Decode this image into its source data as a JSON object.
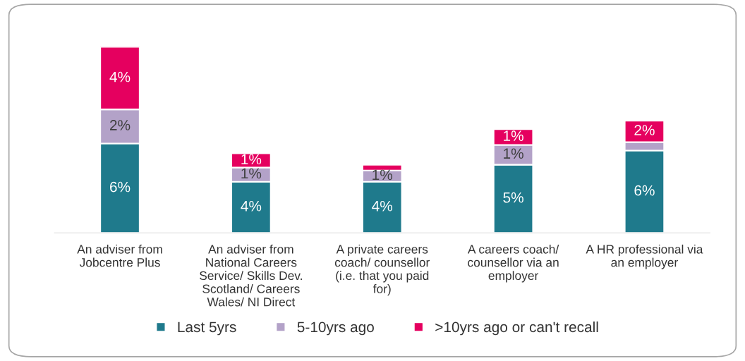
{
  "chart_data": {
    "type": "bar",
    "stacked": true,
    "legend": "bottom",
    "grid": false,
    "categories": [
      "An adviser from Jobcentre Plus",
      "An adviser from National Careers Service/ Skills Dev. Scotland/ Careers Wales/ NI Direct",
      "A private careers coach/ counsellor (i.e. that you paid for)",
      "A careers coach/ counsellor via an employer",
      "A HR professional via an employer"
    ],
    "series": [
      {
        "name": "Last 5yrs",
        "color": "#1f7a8c",
        "values": [
          6.3,
          3.6,
          3.6,
          4.8,
          5.8
        ],
        "value_labels": [
          "6%",
          "4%",
          "4%",
          "5%",
          "6%"
        ]
      },
      {
        "name": "5-10yrs ago",
        "color": "#b3a2c8",
        "values": [
          2.4,
          1.0,
          0.8,
          1.4,
          0.6
        ],
        "value_labels": [
          "2%",
          "1%",
          "1%",
          "1%",
          null
        ]
      },
      {
        "name": ">10yrs ago or can't recall",
        "color": "#e5005f",
        "values": [
          4.4,
          1.0,
          0.4,
          1.1,
          1.5
        ],
        "value_labels": [
          "4%",
          "1%",
          null,
          "1%",
          "2%"
        ]
      }
    ]
  }
}
